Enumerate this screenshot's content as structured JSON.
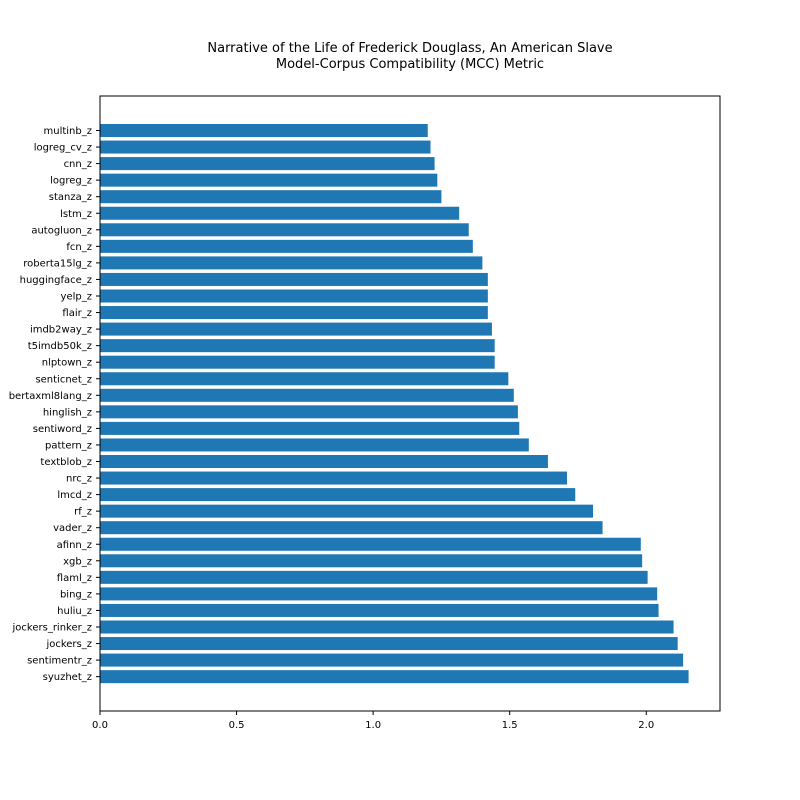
{
  "chart_data": {
    "type": "bar",
    "orientation": "horizontal",
    "title_line1": "Narrative of the Life of Frederick Douglass, An American Slave",
    "title_line2": "Model-Corpus Compatibility (MCC) Metric",
    "xlabel": "",
    "ylabel": "",
    "xlim": [
      0,
      2.27
    ],
    "xticks": [
      "0.0",
      "0.5",
      "1.0",
      "1.5",
      "2.0"
    ],
    "xtick_values": [
      0,
      0.5,
      1.0,
      1.5,
      2.0
    ],
    "grid": false,
    "bar_color": "#1f77b4",
    "categories": [
      "multinb_z",
      "logreg_cv_z",
      "cnn_z",
      "logreg_z",
      "stanza_z",
      "lstm_z",
      "autogluon_z",
      "fcn_z",
      "roberta15lg_z",
      "huggingface_z",
      "yelp_z",
      "flair_z",
      "imdb2way_z",
      "t5imdb50k_z",
      "nlptown_z",
      "senticnet_z",
      "bertaxml8lang_z",
      "hinglish_z",
      "sentiword_z",
      "pattern_z",
      "textblob_z",
      "nrc_z",
      "lmcd_z",
      "rf_z",
      "vader_z",
      "afinn_z",
      "xgb_z",
      "flaml_z",
      "bing_z",
      "huliu_z",
      "jockers_rinker_z",
      "jockers_z",
      "sentimentr_z",
      "syuzhet_z"
    ],
    "values": [
      1.2,
      1.21,
      1.225,
      1.235,
      1.25,
      1.315,
      1.35,
      1.365,
      1.4,
      1.42,
      1.42,
      1.42,
      1.435,
      1.445,
      1.445,
      1.495,
      1.515,
      1.53,
      1.535,
      1.57,
      1.64,
      1.71,
      1.74,
      1.805,
      1.84,
      1.98,
      1.985,
      2.005,
      2.04,
      2.045,
      2.1,
      2.115,
      2.135,
      2.155
    ]
  }
}
